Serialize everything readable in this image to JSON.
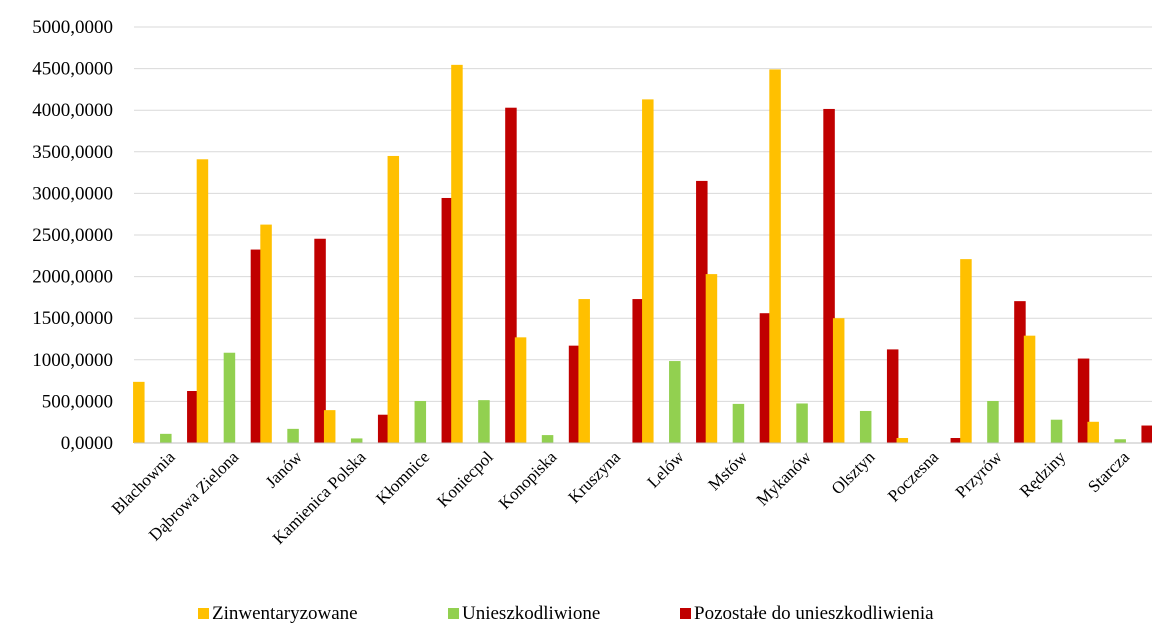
{
  "chart_data": {
    "type": "bar",
    "title": "",
    "xlabel": "",
    "ylabel": "",
    "ylim": [
      0,
      5000
    ],
    "y_ticks": [
      "0,0000",
      "500,0000",
      "1000,0000",
      "1500,0000",
      "2000,0000",
      "2500,0000",
      "3000,0000",
      "3500,0000",
      "4000,0000",
      "4500,0000",
      "5000,0000"
    ],
    "y_tick_values": [
      0,
      500,
      1000,
      1500,
      2000,
      2500,
      3000,
      3500,
      4000,
      4500,
      5000
    ],
    "grid": true,
    "legend_position": "bottom",
    "categories": [
      "Blachownia",
      "Dąbrowa Zielona",
      "Janów",
      "Kamienica Polska",
      "Kłomnice",
      "Koniecpol",
      "Konopiska",
      "Kruszyna",
      "Lelów",
      "Mstów",
      "Mykanów",
      "Olsztyn",
      "Poczesna",
      "Przyrów",
      "Rędziny",
      "Starcza"
    ],
    "series": [
      {
        "name": "Zinwentaryzowane",
        "color": "#FFC000",
        "values": [
          735,
          3410,
          2625,
          395,
          3450,
          4545,
          1270,
          1730,
          4130,
          2030,
          4490,
          1500,
          60,
          2210,
          1290,
          255
        ]
      },
      {
        "name": "Unieszkodliwione",
        "color": "#92D050",
        "values": [
          110,
          1085,
          170,
          55,
          505,
          515,
          95,
          0,
          985,
          470,
          475,
          385,
          0,
          505,
          280,
          45
        ]
      },
      {
        "name": "Pozostałe do unieszkodliwienia",
        "color": "#C00000",
        "values": [
          625,
          2325,
          2455,
          340,
          2945,
          4030,
          1170,
          1730,
          3150,
          1560,
          4015,
          1125,
          60,
          1705,
          1015,
          210
        ]
      }
    ]
  }
}
